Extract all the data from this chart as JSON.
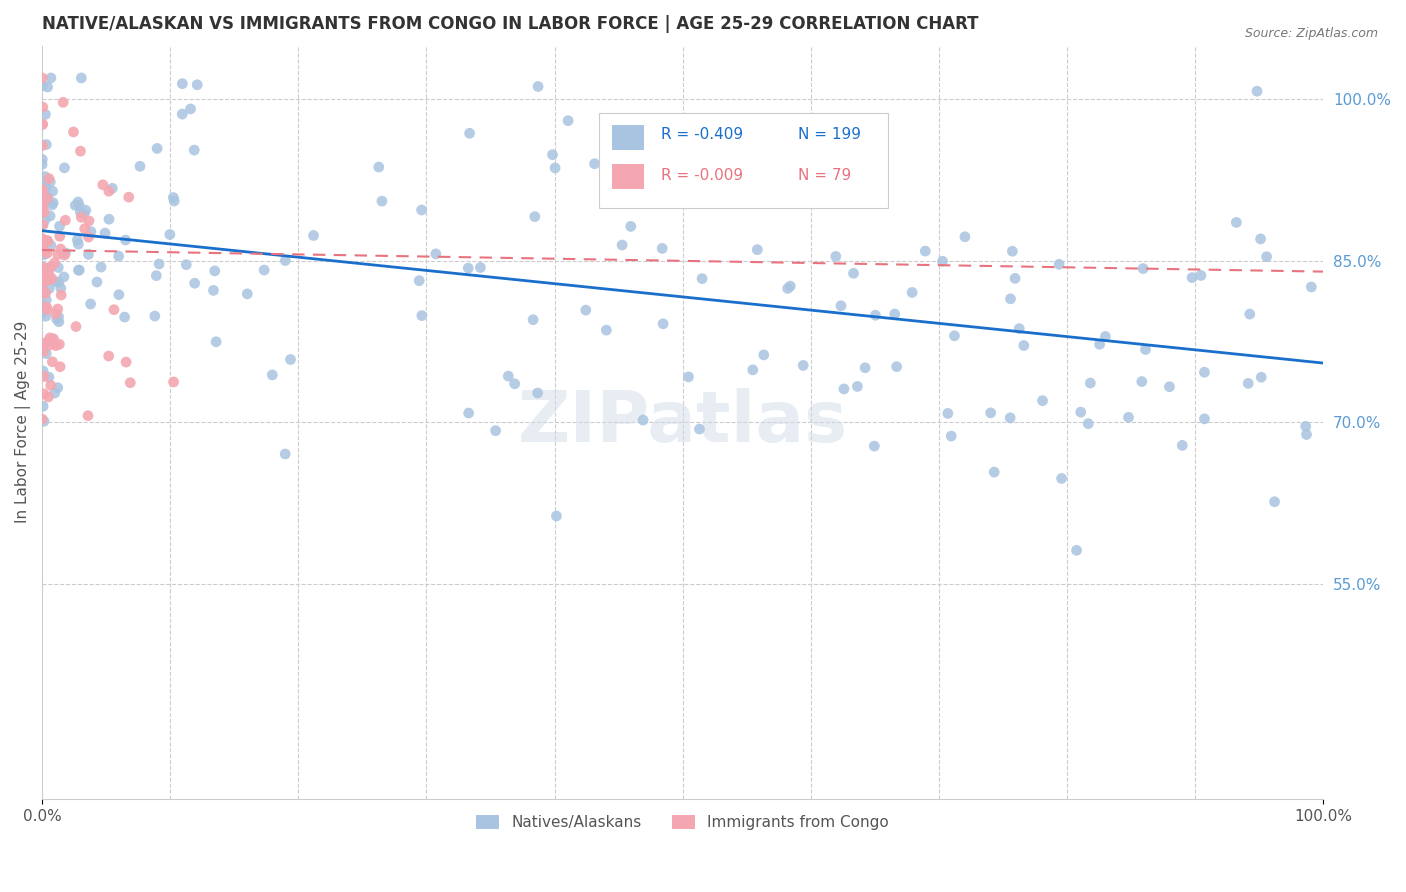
{
  "title": "NATIVE/ALASKAN VS IMMIGRANTS FROM CONGO IN LABOR FORCE | AGE 25-29 CORRELATION CHART",
  "source": "Source: ZipAtlas.com",
  "ylabel": "In Labor Force | Age 25-29",
  "xlim": [
    0.0,
    1.0
  ],
  "ytick_labels": [
    "55.0%",
    "70.0%",
    "85.0%",
    "100.0%"
  ],
  "ytick_positions": [
    0.55,
    0.7,
    0.85,
    1.0
  ],
  "watermark": "ZIPatlas",
  "legend_r_native": "-0.409",
  "legend_n_native": "199",
  "legend_r_congo": "-0.009",
  "legend_n_congo": "79",
  "native_color": "#a8c4e0",
  "congo_color": "#f4a7b0",
  "native_line_color": "#1a6fcc",
  "congo_line_color": "#e8737f",
  "background_color": "#ffffff",
  "grid_color": "#cccccc",
  "title_color": "#333333",
  "axis_label_color": "#555555",
  "right_tick_color": "#5b9bd5",
  "seed_native": 42,
  "seed_congo": 7,
  "n_native": 199,
  "n_congo": 79,
  "native_intercept_at0": 0.878,
  "congo_intercept_at0": 0.86,
  "native_line_start_y": 0.878,
  "native_line_end_y": 0.755,
  "congo_line_start_y": 0.86,
  "congo_line_end_y": 0.84,
  "ylim_low": 0.35,
  "ylim_high": 1.05
}
